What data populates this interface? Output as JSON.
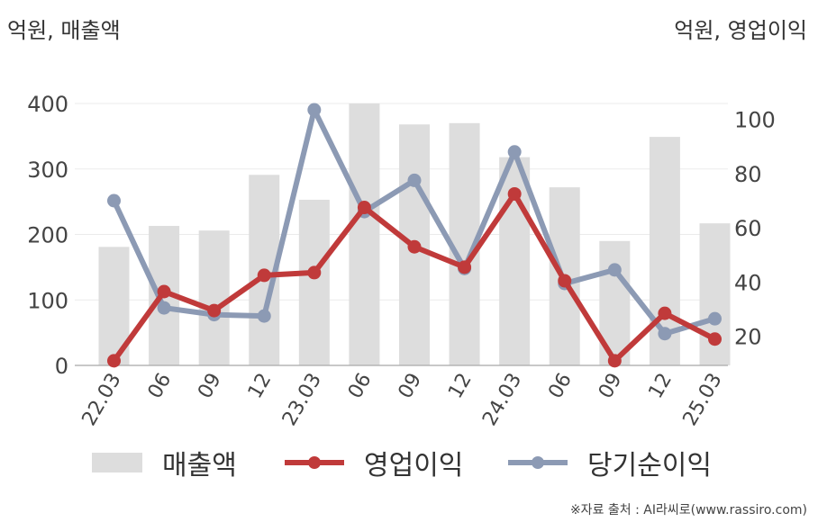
{
  "header": {
    "left_unit": "억원, 매출액",
    "right_unit": "억원, 영업이익"
  },
  "source": "※자료 출처 : AI라씨로(www.rassiro.com)",
  "legend": {
    "revenue": "매출액",
    "operating": "영업이익",
    "net": "당기순이익"
  },
  "colors": {
    "revenue": "#dddddd",
    "operating": "#c03a3a",
    "net": "#8c9ab4"
  },
  "chart_data": {
    "type": "bar",
    "categories": [
      "22.03",
      "06",
      "09",
      "12",
      "23.03",
      "06",
      "09",
      "12",
      "24.03",
      "06",
      "09",
      "12",
      "25.03"
    ],
    "y_left_ticks": [
      "0",
      "100",
      "200",
      "300",
      "400"
    ],
    "y_left_range": [
      0,
      400
    ],
    "y_right_ticks": [
      "20",
      "40",
      "60",
      "80",
      "100"
    ],
    "y_right_range": [
      9.3,
      104.5
    ],
    "grid": true,
    "legend_position": "bottom",
    "series": [
      {
        "name": "매출액",
        "type": "bar",
        "axis": "left",
        "values": [
          181,
          213,
          206,
          291,
          253,
          400,
          368,
          370,
          318,
          272,
          190,
          349,
          217
        ]
      },
      {
        "name": "영업이익",
        "type": "line",
        "axis": "right",
        "values": [
          11,
          36.5,
          29.5,
          42.5,
          43.5,
          67.5,
          53,
          45.5,
          72.5,
          40.5,
          11,
          28.5,
          19
        ]
      },
      {
        "name": "당기순이익",
        "type": "line",
        "axis": "right",
        "values": [
          70,
          30.5,
          28,
          27.5,
          103.5,
          66,
          77.5,
          45,
          88,
          39.5,
          44.5,
          21,
          26.5
        ]
      }
    ]
  }
}
